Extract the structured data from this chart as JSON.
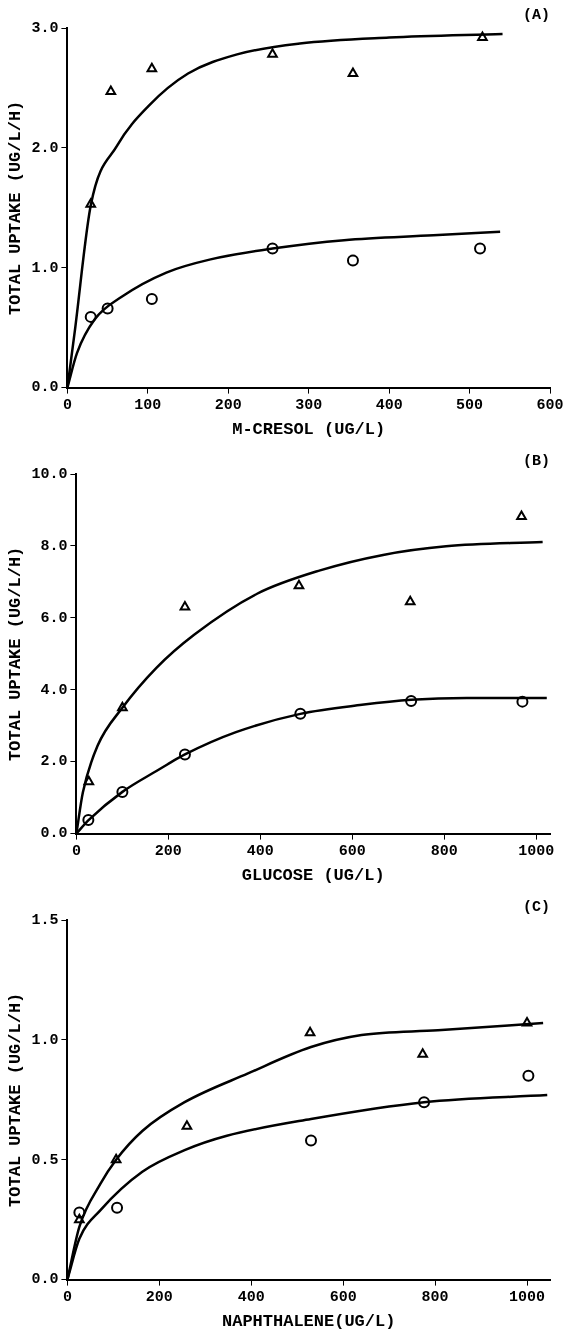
{
  "chart_data": [
    {
      "type": "scatter",
      "title": "(A)",
      "xlabel": "M-CRESOL (UG/L)",
      "ylabel": "TOTAL UPTAKE (UG/L/H)",
      "xlim": [
        0,
        600
      ],
      "ylim": [
        0,
        3.0
      ],
      "xticks": [
        0,
        100,
        200,
        300,
        400,
        500,
        600
      ],
      "yticks": [
        {
          "value": 0,
          "label": "0.0"
        },
        {
          "value": 1,
          "label": "1.0"
        },
        {
          "value": 2,
          "label": "2.0"
        },
        {
          "value": 3,
          "label": "3.0"
        }
      ],
      "grid": false,
      "legend": false,
      "series": [
        {
          "marker": "triangle",
          "color": "#000000",
          "x": [
            29,
            54,
            105,
            255,
            355,
            516
          ],
          "values": [
            1.53,
            2.47,
            2.66,
            2.78,
            2.62,
            2.92
          ]
        },
        {
          "marker": "circle",
          "color": "#000000",
          "x": [
            29,
            50,
            105,
            255,
            355,
            513
          ],
          "values": [
            0.59,
            0.66,
            0.74,
            1.16,
            1.06,
            1.16
          ]
        },
        {
          "type": "line",
          "marker": "none",
          "color": "#000000",
          "x": [
            0,
            9,
            29,
            62,
            101,
            150,
            211,
            289,
            400,
            541
          ],
          "values": [
            0,
            0.46,
            1.52,
            2.02,
            2.35,
            2.62,
            2.78,
            2.87,
            2.92,
            2.95
          ]
        },
        {
          "type": "line",
          "marker": "none",
          "color": "#000000",
          "x": [
            0,
            12,
            34,
            68,
            123,
            178,
            255,
            344,
            455,
            538
          ],
          "values": [
            0,
            0.29,
            0.57,
            0.76,
            0.96,
            1.07,
            1.16,
            1.23,
            1.27,
            1.3
          ]
        }
      ]
    },
    {
      "type": "scatter",
      "title": "(B)",
      "xlabel": "GLUCOSE (UG/L)",
      "ylabel": "TOTAL UPTAKE (UG/L/H)",
      "xlim": [
        0,
        1030
      ],
      "ylim": [
        0,
        10.0
      ],
      "xticks": [
        0,
        200,
        400,
        600,
        800,
        1000
      ],
      "yticks": [
        {
          "value": 0,
          "label": "0.0"
        },
        {
          "value": 2,
          "label": "2.0"
        },
        {
          "value": 4,
          "label": "4.0"
        },
        {
          "value": 6,
          "label": "6.0"
        },
        {
          "value": 8,
          "label": "8.0"
        },
        {
          "value": 10,
          "label": "10.0"
        }
      ],
      "grid": false,
      "legend": false,
      "series": [
        {
          "marker": "triangle",
          "color": "#000000",
          "x": [
            27,
            100,
            236,
            484,
            726,
            968
          ],
          "values": [
            1.44,
            3.5,
            6.3,
            6.89,
            6.45,
            8.82
          ]
        },
        {
          "marker": "circle",
          "color": "#000000",
          "x": [
            26,
            100,
            236,
            487,
            728,
            970
          ],
          "values": [
            0.38,
            1.16,
            2.2,
            3.33,
            3.69,
            3.67
          ]
        },
        {
          "type": "line",
          "marker": "none",
          "color": "#000000",
          "x": [
            0,
            14,
            46,
            100,
            174,
            256,
            393,
            530,
            667,
            804,
            1014
          ],
          "values": [
            0,
            1.14,
            2.44,
            3.5,
            4.61,
            5.53,
            6.67,
            7.32,
            7.75,
            7.99,
            8.11
          ]
        },
        {
          "type": "line",
          "marker": "none",
          "color": "#000000",
          "x": [
            0,
            27,
            100,
            174,
            236,
            347,
            487,
            621,
            728,
            849,
            1023
          ],
          "values": [
            0,
            0.38,
            1.16,
            1.74,
            2.2,
            2.82,
            3.33,
            3.58,
            3.72,
            3.77,
            3.77
          ]
        }
      ]
    },
    {
      "type": "scatter",
      "title": "(C)",
      "xlabel": "NAPHTHALENE(UG/L)",
      "ylabel": "TOTAL UPTAKE (UG/L/H)",
      "xlim": [
        0,
        1050
      ],
      "ylim": [
        0,
        1.5
      ],
      "xticks": [
        0,
        200,
        400,
        600,
        800,
        1000
      ],
      "yticks": [
        {
          "value": 0,
          "label": "0.0"
        },
        {
          "value": 0.5,
          "label": "0.5"
        },
        {
          "value": 1,
          "label": "1.0"
        },
        1.5
      ],
      "grid": false,
      "legend": false,
      "series": [
        {
          "marker": "triangle",
          "color": "#000000",
          "x": [
            26,
            106,
            260,
            528,
            773,
            1000
          ],
          "values": [
            0.25,
            0.5,
            0.64,
            1.03,
            0.94,
            1.07
          ]
        },
        {
          "marker": "circle",
          "color": "#000000",
          "x": [
            26,
            108,
            530,
            776,
            1003
          ],
          "values": [
            0.28,
            0.3,
            0.58,
            0.74,
            0.85
          ]
        },
        {
          "type": "line",
          "marker": "none",
          "color": "#000000",
          "x": [
            0,
            26,
            72,
            106,
            163,
            255,
            393,
            530,
            640,
            806,
            1035
          ],
          "values": [
            0,
            0.22,
            0.4,
            0.5,
            0.62,
            0.74,
            0.86,
            0.97,
            1.02,
            1.04,
            1.07
          ]
        },
        {
          "type": "line",
          "marker": "none",
          "color": "#000000",
          "x": [
            0,
            26,
            72,
            163,
            255,
            347,
            530,
            776,
            1044
          ],
          "values": [
            0,
            0.17,
            0.29,
            0.45,
            0.54,
            0.6,
            0.67,
            0.74,
            0.77
          ]
        }
      ]
    }
  ]
}
